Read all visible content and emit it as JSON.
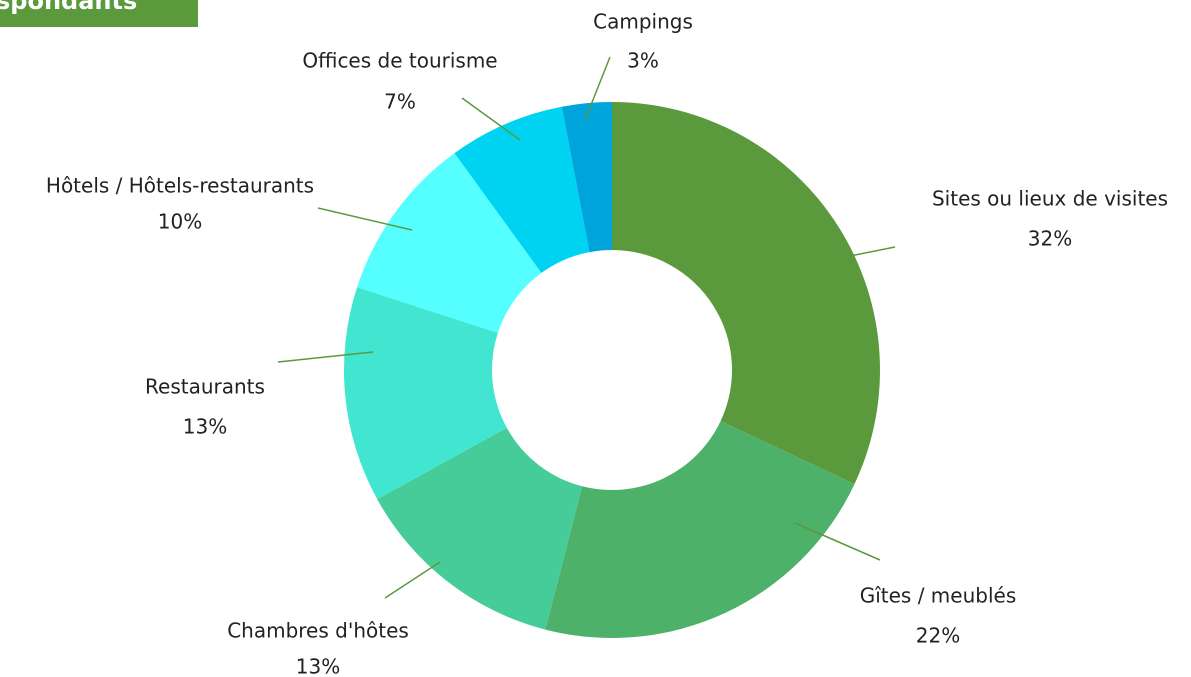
{
  "header": {
    "title": "spondants"
  },
  "chart_data": {
    "type": "donut",
    "categories": [
      "Sites ou lieux de visites",
      "Gîtes / meublés",
      "Chambres d'hôtes",
      "Restaurants",
      "Hôtels / Hôtels-restaurants",
      "Offices de tourisme",
      "Campings"
    ],
    "values": [
      32,
      22,
      13,
      13,
      10,
      7,
      3
    ],
    "value_labels": [
      "32%",
      "22%",
      "13%",
      "13%",
      "10%",
      "7%",
      "3%"
    ],
    "colors": [
      "#5b9a3c",
      "#4db169",
      "#45cc98",
      "#42e6d0",
      "#55ffff",
      "#00d2f2",
      "#00a4dd"
    ]
  }
}
